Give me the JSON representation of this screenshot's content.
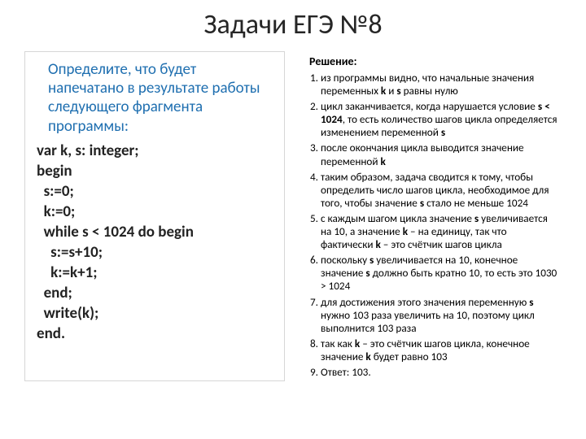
{
  "title": "Задачи  ЕГЭ №8",
  "left": {
    "prompt": "Определите, что будет напечатано в результате работы следующего фрагмента программы:",
    "code": [
      "var k, s: integer;",
      "begin",
      "  s:=0;",
      "  k:=0;",
      "  while s < 1024 do begin",
      "    s:=s+10;",
      "    k:=k+1;",
      "  end;",
      "  write(k);",
      "end."
    ]
  },
  "right": {
    "heading": "Решение:",
    "items_html": [
      "из программы видно, что начальные значения переменных <b>k</b> и <b>s</b> равны нулю",
      "цикл заканчивается, когда нарушается условие <b>s &lt; 1024</b>, то есть количество шагов цикла определяется изменением переменной <b>s</b>",
      "после окончания цикла выводится значение переменной <b>k</b>",
      "таким образом, задача сводится к тому, чтобы определить число шагов цикла, необходимое для того, чтобы значение <b>s</b> стало не меньше 1024",
      "с каждым шагом цикла значение <b>s</b> увеличивается на 10, а значение <b>k</b> – на единицу, так что фактически <b>k</b> – это счётчик шагов цикла",
      "поскольку <b>s</b> увеличивается на 10, конечное значение <b>s</b> должно быть кратно 10, то есть это 1030 &gt; 1024",
      "для достижения этого значения переменную <b>s</b> нужно 103 раза увеличить на 10, поэтому цикл выполнится 103 раза",
      "так как <b>k</b> – это счётчик шагов цикла, конечное значение <b>k</b> будет равно 103",
      "Ответ:  103."
    ]
  },
  "colors": {
    "prompt": "#1f6fb0",
    "border": "#d6d6d6",
    "text": "#222222"
  }
}
